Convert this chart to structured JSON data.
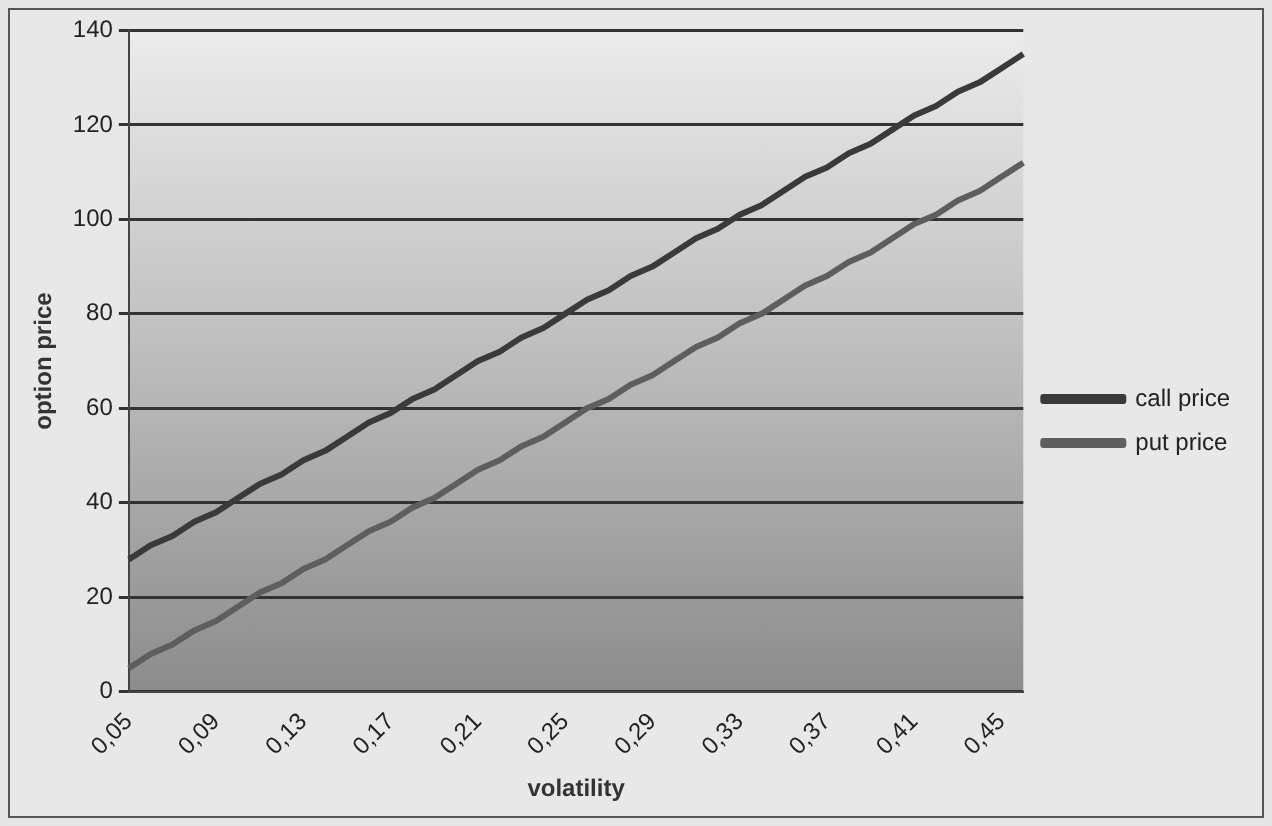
{
  "chart_data": {
    "type": "line",
    "xlabel": "volatility",
    "ylabel": "option price",
    "categories": [
      "0,05",
      null,
      null,
      null,
      "0,09",
      null,
      null,
      null,
      "0,13",
      null,
      null,
      null,
      "0,17",
      null,
      null,
      null,
      "0,21",
      null,
      null,
      null,
      "0,25",
      null,
      null,
      null,
      "0,29",
      null,
      null,
      null,
      "0,33",
      null,
      null,
      null,
      "0,37",
      null,
      null,
      null,
      "0,41",
      null,
      null,
      null,
      "0,45",
      null
    ],
    "series": [
      {
        "name": "call price",
        "color": "#3a3a3a",
        "values": [
          28,
          31,
          33,
          36,
          38,
          41,
          44,
          46,
          49,
          51,
          54,
          57,
          59,
          62,
          64,
          67,
          70,
          72,
          75,
          77,
          80,
          83,
          85,
          88,
          90,
          93,
          96,
          98,
          101,
          103,
          106,
          109,
          111,
          114,
          116,
          119,
          122,
          124,
          127,
          129,
          132,
          135
        ]
      },
      {
        "name": "put price",
        "color": "#5e5e5e",
        "values": [
          5,
          8,
          10,
          13,
          15,
          18,
          21,
          23,
          26,
          28,
          31,
          34,
          36,
          39,
          41,
          44,
          47,
          49,
          52,
          54,
          57,
          60,
          62,
          65,
          67,
          70,
          73,
          75,
          78,
          80,
          83,
          86,
          88,
          91,
          93,
          96,
          99,
          101,
          104,
          106,
          109,
          112
        ]
      }
    ],
    "ylim": [
      0,
      140
    ],
    "yticks": [
      0,
      20,
      40,
      60,
      80,
      100,
      120,
      140
    ],
    "grid": "y",
    "legend": "right",
    "marker": "none",
    "line_style": "solid"
  }
}
